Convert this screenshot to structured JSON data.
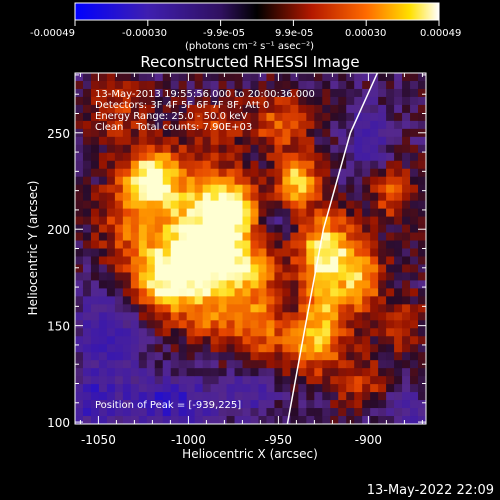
{
  "colorbar": {
    "ticks": [
      "-0.00049",
      "-0.00030",
      "-9.9e-05",
      "9.9e-05",
      "0.00030",
      "0.00049"
    ],
    "unit_label": "(photons cm⁻² s⁻¹ asec⁻²)"
  },
  "chart_data": {
    "type": "heatmap",
    "title": "Reconstructed RHESSI Image",
    "xlabel": "Heliocentric X (arcsec)",
    "ylabel": "Heliocentric Y (arcsec)",
    "xlim": [
      -1063,
      -868
    ],
    "ylim": [
      99,
      281
    ],
    "xticks": [
      "-1050",
      "-1000",
      "-950",
      "-900"
    ],
    "yticks": [
      "100",
      "150",
      "200",
      "250"
    ],
    "info_lines": [
      "13-May-2013 19:55:56.000 to 20:00:36.000",
      "Detectors: 3F 4F 5F 6F 7F 8F, Att 0",
      "Energy Range: 25.0 - 50.0 keV",
      "Clean    Total counts: 7.90E+03"
    ],
    "peak_label": "Position of Peak = [-939,225]",
    "peak": [
      -939,
      225
    ],
    "limb_points": [
      [
        -945,
        99
      ],
      [
        -935,
        150
      ],
      [
        -925,
        200
      ],
      [
        -910,
        250
      ],
      [
        -895,
        281
      ]
    ],
    "colorscale": [
      "#0000ff",
      "#5a1d8f",
      "#000000",
      "#b41800",
      "#ff6a00",
      "#ffe000",
      "#ffffff"
    ],
    "blobs": [
      {
        "x": -1020,
        "y": 228,
        "sx": 10,
        "sy": 10,
        "a": 1.0
      },
      {
        "x": -1030,
        "y": 205,
        "sx": 14,
        "sy": 18,
        "a": 0.55
      },
      {
        "x": -992,
        "y": 205,
        "sx": 16,
        "sy": 20,
        "a": 0.95
      },
      {
        "x": -975,
        "y": 210,
        "sx": 10,
        "sy": 10,
        "a": 0.8
      },
      {
        "x": -1000,
        "y": 180,
        "sx": 18,
        "sy": 12,
        "a": 0.75
      },
      {
        "x": -970,
        "y": 180,
        "sx": 14,
        "sy": 10,
        "a": 0.7
      },
      {
        "x": -1015,
        "y": 170,
        "sx": 12,
        "sy": 10,
        "a": 0.6
      },
      {
        "x": -985,
        "y": 155,
        "sx": 16,
        "sy": 10,
        "a": 0.55
      },
      {
        "x": -960,
        "y": 150,
        "sx": 10,
        "sy": 14,
        "a": 0.5
      },
      {
        "x": -940,
        "y": 225,
        "sx": 8,
        "sy": 9,
        "a": 0.95
      },
      {
        "x": -925,
        "y": 200,
        "sx": 10,
        "sy": 10,
        "a": 0.55
      },
      {
        "x": -925,
        "y": 183,
        "sx": 10,
        "sy": 10,
        "a": 0.9
      },
      {
        "x": -905,
        "y": 175,
        "sx": 9,
        "sy": 14,
        "a": 0.8
      },
      {
        "x": -930,
        "y": 140,
        "sx": 12,
        "sy": 10,
        "a": 0.8
      },
      {
        "x": -925,
        "y": 160,
        "sx": 8,
        "sy": 9,
        "a": 0.7
      },
      {
        "x": -888,
        "y": 220,
        "sx": 8,
        "sy": 10,
        "a": 0.55
      },
      {
        "x": -948,
        "y": 255,
        "sx": 12,
        "sy": 10,
        "a": 0.55
      },
      {
        "x": -985,
        "y": 255,
        "sx": 12,
        "sy": 8,
        "a": 0.35
      },
      {
        "x": -1040,
        "y": 262,
        "sx": 12,
        "sy": 10,
        "a": 0.4
      },
      {
        "x": -905,
        "y": 120,
        "sx": 10,
        "sy": 8,
        "a": 0.45
      },
      {
        "x": -880,
        "y": 150,
        "sx": 8,
        "sy": 10,
        "a": 0.4
      },
      {
        "x": -1045,
        "y": 145,
        "sx": 12,
        "sy": 18,
        "a": -0.45
      },
      {
        "x": -1010,
        "y": 110,
        "sx": 20,
        "sy": 10,
        "a": -0.55
      },
      {
        "x": -1055,
        "y": 110,
        "sx": 10,
        "sy": 10,
        "a": -0.4
      },
      {
        "x": -900,
        "y": 245,
        "sx": 10,
        "sy": 14,
        "a": -0.35
      },
      {
        "x": -965,
        "y": 115,
        "sx": 10,
        "sy": 8,
        "a": -0.35
      },
      {
        "x": -878,
        "y": 105,
        "sx": 10,
        "sy": 8,
        "a": -0.35
      },
      {
        "x": -952,
        "y": 205,
        "sx": 6,
        "sy": 8,
        "a": -0.25
      }
    ]
  },
  "footer_date": "13-May-2022 22:09"
}
